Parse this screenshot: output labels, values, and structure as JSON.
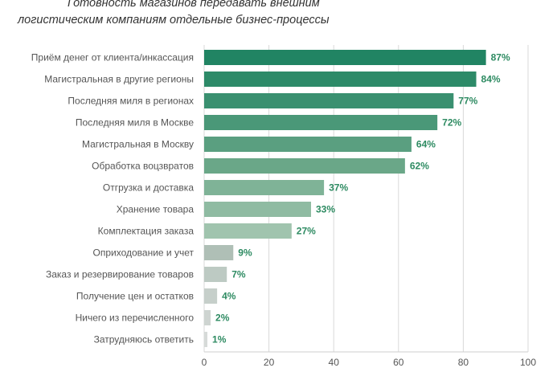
{
  "chart_data": {
    "type": "bar",
    "orientation": "horizontal",
    "title_line1": "Готовность магазинов передавать внешним",
    "title_line2": "логистическим компаниям отдельные бизнес-процессы",
    "categories": [
      "Приём денег от клиента/инкассация",
      "Магистральная в другие регионы",
      "Последняя миля в регионах",
      "Последняя миля в Москве",
      "Магистральная в Москву",
      "Обработка воцзвратов",
      "Отгрузка и доставка",
      "Хранение товара",
      "Комплектация заказа",
      "Оприходование и учет",
      "Заказ и резервирование товаров",
      "Получение цен и остатков",
      "Ничего из перечисленного",
      "Затрудняюсь ответить"
    ],
    "values": [
      87,
      84,
      77,
      72,
      64,
      62,
      37,
      33,
      27,
      9,
      7,
      4,
      2,
      1
    ],
    "value_labels": [
      "87%",
      "84%",
      "77%",
      "72%",
      "64%",
      "62%",
      "37%",
      "33%",
      "27%",
      "9%",
      "7%",
      "4%",
      "2%",
      "1%"
    ],
    "xlim": [
      0,
      100
    ],
    "xticks": [
      "0",
      "20",
      "40",
      "60",
      "80",
      "100"
    ],
    "grid": "vertical",
    "colors": [
      "#218463",
      "#2d8a68",
      "#3a9070",
      "#4a9878",
      "#5a9f80",
      "#6aa788",
      "#7fb397",
      "#8fbba2",
      "#a0c4ae",
      "#afbfb6",
      "#bdcac3",
      "#c6cfca",
      "#ced4d1",
      "#d6dad8"
    ],
    "label_color": "#2e8b62"
  }
}
